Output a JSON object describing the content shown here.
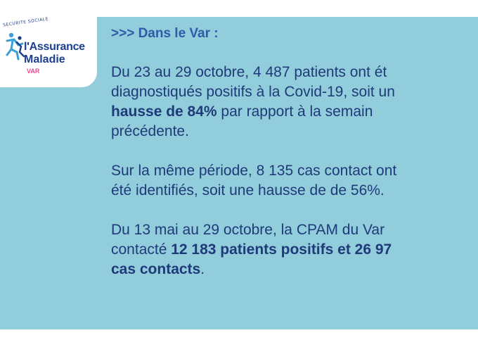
{
  "logo": {
    "arc_text": "SECURITE SOCIALE",
    "title": "l'Assurance",
    "subtitle": "Maladie",
    "region": "VAR",
    "colors": {
      "primary": "#1b3f8f",
      "accent": "#3aa0d8",
      "region": "#e8468a"
    }
  },
  "heading": ">>> Dans le Var :",
  "paragraph1": {
    "line1": "Du 23 au 29 octobre, 4 487 patients ont ét",
    "line2": "diagnostiqués positifs à la Covid-19, soit un",
    "line3_bold": "hausse de 84%",
    "line3_rest": " par rapport à la semain",
    "line4": "précédente."
  },
  "paragraph2": {
    "line1": "Sur la même période, 8 135 cas contact ont",
    "line2": "été identifiés, soit une hausse de de 56%."
  },
  "paragraph3": {
    "line1": "Du 13 mai au 29 octobre, la CPAM du Var",
    "line2_start": "contacté ",
    "line2_bold": "12 183 patients positifs et 26 97",
    "line3_bold": "cas contacts",
    "line3_rest": "."
  },
  "colors": {
    "background": "#92cddc",
    "text": "#1f3a78",
    "heading": "#2d5ca8"
  }
}
